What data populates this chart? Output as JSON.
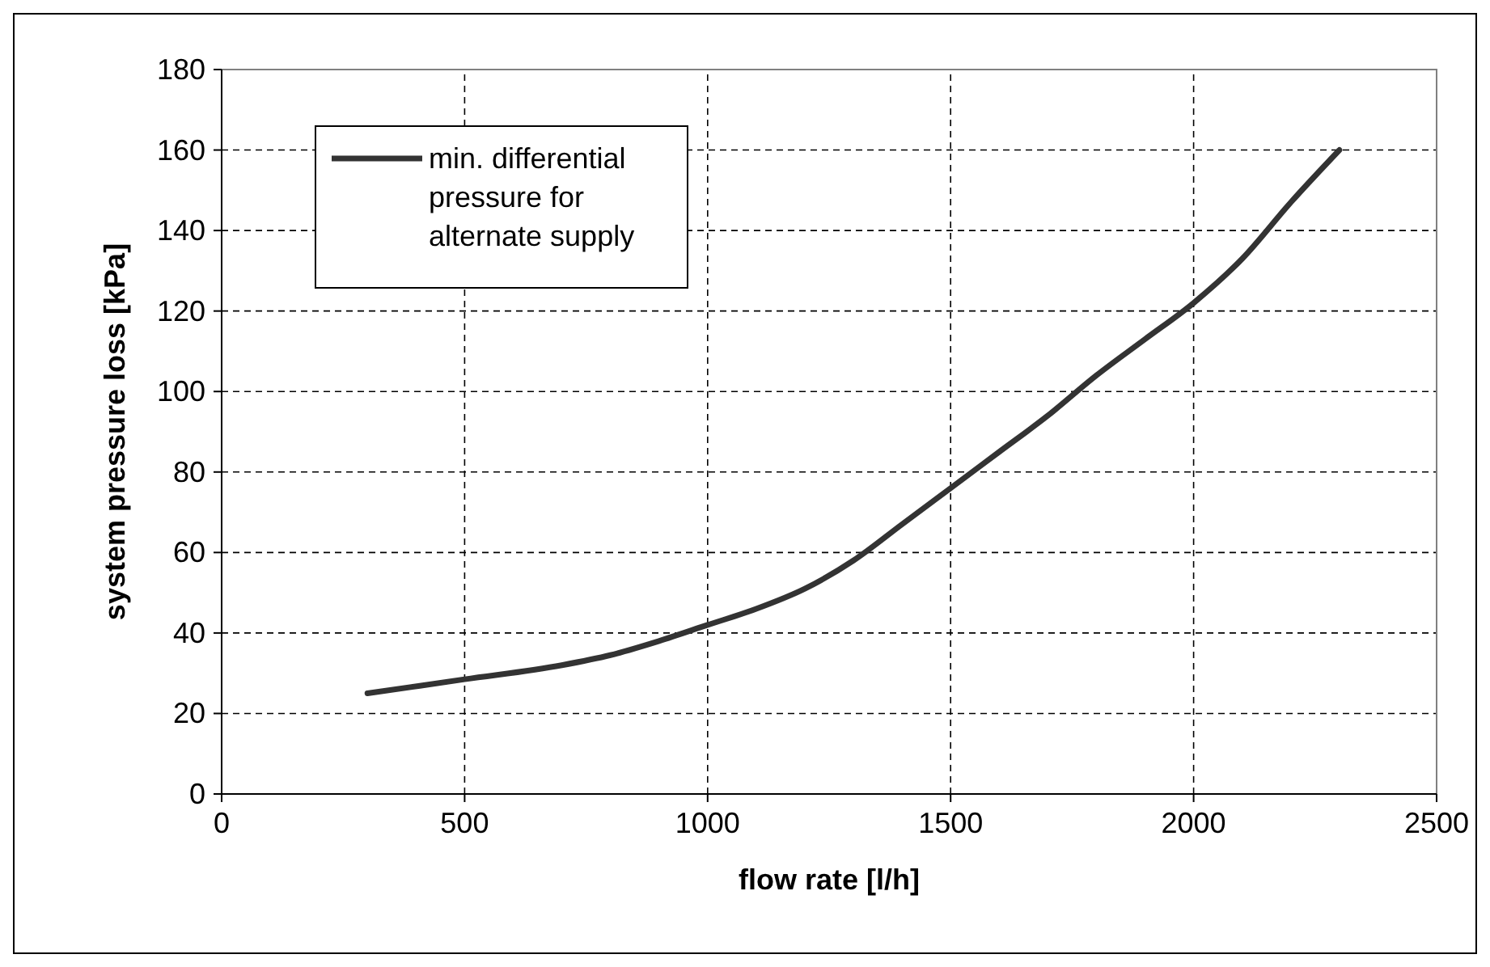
{
  "chart_data": {
    "type": "line",
    "xlabel": "flow rate [l/h]",
    "ylabel": "system pressure loss [kPa]",
    "xlim": [
      0,
      2500
    ],
    "xticks": [
      0,
      500,
      1000,
      1500,
      2000,
      2500
    ],
    "ylim": [
      0,
      180
    ],
    "yticks": [
      0,
      20,
      40,
      60,
      80,
      100,
      120,
      140,
      160,
      180
    ],
    "grid": true,
    "legend": "top left",
    "line_style": "solid",
    "marker": "none",
    "series": [
      {
        "name": "min. differential pressure for alternate supply",
        "color": "#333333",
        "x": [
          300,
          500,
          700,
          800,
          900,
          1000,
          1100,
          1200,
          1300,
          1400,
          1500,
          1600,
          1700,
          1800,
          1900,
          2000,
          2100,
          2200,
          2300
        ],
        "values": [
          25,
          28.5,
          32,
          34.5,
          38,
          42,
          46,
          51,
          58,
          67,
          76,
          85,
          94,
          104,
          113,
          122,
          133,
          147,
          160
        ]
      }
    ]
  }
}
